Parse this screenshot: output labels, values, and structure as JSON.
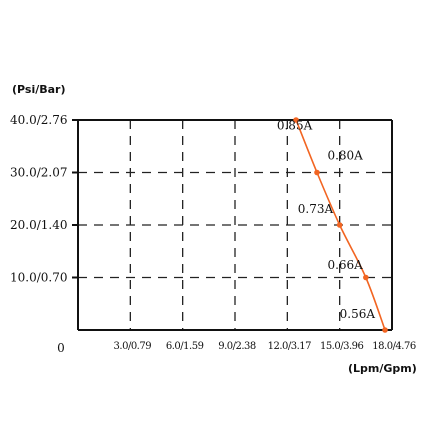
{
  "chart_data": {
    "type": "line",
    "y_unit_label": "(Psi/Bar)",
    "x_unit_label": "(Lpm/Gpm)",
    "origin_label": "0",
    "x_ticks": [
      {
        "value": 3.0,
        "label": "3.0/0.79"
      },
      {
        "value": 6.0,
        "label": "6.0/1.59"
      },
      {
        "value": 9.0,
        "label": "9.0/2.38"
      },
      {
        "value": 12.0,
        "label": "12.0/3.17"
      },
      {
        "value": 15.0,
        "label": "15.0/3.96"
      },
      {
        "value": 18.0,
        "label": "18.0/4.76"
      }
    ],
    "y_ticks": [
      {
        "value": 10.0,
        "label": "10.0/0.70"
      },
      {
        "value": 20.0,
        "label": "20.0/1.40"
      },
      {
        "value": 30.0,
        "label": "30.0/2.07"
      },
      {
        "value": 40.0,
        "label": "40.0/2.76"
      }
    ],
    "xlim": [
      0,
      18
    ],
    "ylim": [
      0,
      40
    ],
    "grid": true,
    "series_color": "#f26522",
    "series": [
      {
        "points": [
          {
            "x": 12.5,
            "y": 40.0
          },
          {
            "x": 13.7,
            "y": 30.0
          },
          {
            "x": 15.0,
            "y": 20.0
          },
          {
            "x": 16.5,
            "y": 10.0
          },
          {
            "x": 17.6,
            "y": 0.0
          }
        ]
      }
    ],
    "annotations": [
      {
        "text": "0.85A",
        "x": 11.4,
        "y": 38.2
      },
      {
        "text": "0.80A",
        "x": 14.3,
        "y": 32.5
      },
      {
        "text": "0.73A",
        "x": 12.6,
        "y": 22.3
      },
      {
        "text": "0.66A",
        "x": 14.3,
        "y": 11.6
      },
      {
        "text": "0.56A",
        "x": 15.0,
        "y": 2.3
      }
    ]
  }
}
